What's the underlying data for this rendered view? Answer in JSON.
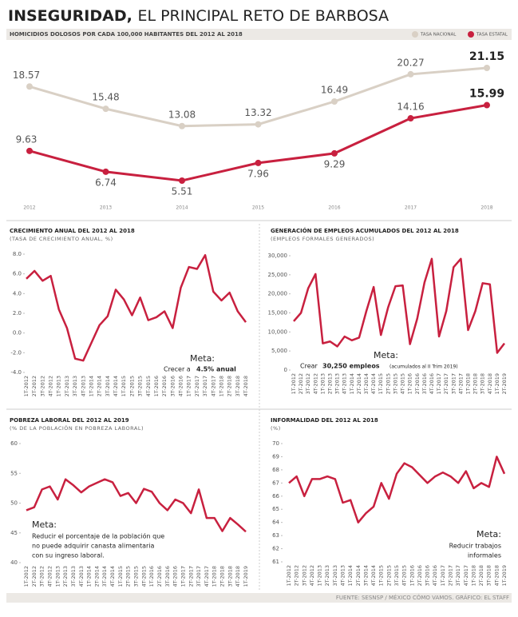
{
  "header": {
    "title_bold": "INSEGURIDAD,",
    "title_light": "EL PRINCIPAL RETO DE BARBOSA"
  },
  "source": "FUENTE: SESNSP / MÉXICO CÓMO VAMOS. GRÁFICO: EL STAFF",
  "chart_data": [
    {
      "type": "line",
      "title": "HOMICIDIOS DOLOSOS POR CADA 100,000 HABITANTES DEL 2012 AL 2018",
      "categories": [
        "2012",
        "2013",
        "2014",
        "2015",
        "2016",
        "2017",
        "2018"
      ],
      "series": [
        {
          "name": "TASA NACIONAL",
          "color": "#d9d0c5",
          "values": [
            18.57,
            15.48,
            13.08,
            13.32,
            16.49,
            20.27,
            21.15
          ]
        },
        {
          "name": "TASA ESTATAL",
          "color": "#c8203f",
          "values": [
            9.63,
            6.74,
            5.51,
            7.96,
            9.29,
            14.16,
            15.99
          ]
        }
      ]
    },
    {
      "type": "line",
      "title": "CRECIMIENTO ANUAL DEL 2012 AL 2018",
      "subtitle": "(TASA DE CRECIMIENTO ANUAL, %)",
      "color": "#c8203f",
      "categories": [
        "1T-2012",
        "2T-2012",
        "3T-2012",
        "4T-2012",
        "1T-2013",
        "2T-2013",
        "3T-2013",
        "4T-2013",
        "1T-2014",
        "2T-2014",
        "3T-2014",
        "4T-2014",
        "1T-2015",
        "2T-2015",
        "3T-2015",
        "4T-2015",
        "1T-2016",
        "2T-2016",
        "3T-2016",
        "4T-2016",
        "1T-2017",
        "2T-2017",
        "3T-2017",
        "4T-2017",
        "1T-2018",
        "2T-2018",
        "3T-2018",
        "4T-2018"
      ],
      "values": [
        5.5,
        6.3,
        5.3,
        5.8,
        2.4,
        0.5,
        -2.6,
        -2.8,
        -1.0,
        0.8,
        1.7,
        4.4,
        3.4,
        1.8,
        3.6,
        1.3,
        1.6,
        2.2,
        0.5,
        4.6,
        6.7,
        6.5,
        7.9,
        4.2,
        3.3,
        4.1,
        2.2,
        1.1
      ],
      "ylim": [
        -4,
        8
      ],
      "yticks": [
        {
          "value": 8,
          "label": "8.0"
        },
        {
          "value": 6,
          "label": "6.0"
        },
        {
          "value": 4,
          "label": "4.0"
        },
        {
          "value": 2,
          "label": "2.0"
        },
        {
          "value": 0,
          "label": "0.0"
        },
        {
          "value": -2,
          "label": "-2.0"
        },
        {
          "value": -4,
          "label": "-4.0"
        }
      ],
      "annotations": [
        "Meta:",
        "Crecer a",
        "4.5% anual"
      ]
    },
    {
      "type": "line",
      "title": "GENERACIÓN DE EMPLEOS ACUMULADOS DEL 2012 AL 2018",
      "subtitle": "(EMPLEOS FORMALES GENERADOS)",
      "color": "#c8203f",
      "categories": [
        "1T-2012",
        "2T-2012",
        "3T-2012",
        "4T-2012",
        "1T-2013",
        "2T-2013",
        "3T-2013",
        "4T-2013",
        "1T-2014",
        "2T-2014",
        "3T-2014",
        "4T-2014",
        "1T-2015",
        "2T-2015",
        "3T-2015",
        "4T-2015",
        "1T-2016",
        "2T-2016",
        "3T-2016",
        "4T-2016",
        "1T-2017",
        "2T-2017",
        "3T-2017",
        "4T-2017",
        "1T-2018",
        "2T-2018",
        "3T-2018",
        "4T-2018",
        "1T-2019",
        "2T-2019"
      ],
      "values": [
        12800,
        15000,
        21500,
        25200,
        7000,
        7500,
        6200,
        8800,
        7800,
        8500,
        15500,
        21800,
        9200,
        16500,
        22000,
        22200,
        6800,
        13500,
        23000,
        29200,
        8800,
        15500,
        27000,
        29200,
        10500,
        15500,
        22800,
        22500,
        4500,
        7000
      ],
      "ylim": [
        0,
        30000
      ],
      "yticks": [
        0,
        {
          "value": 5000,
          "label": "5,000"
        },
        {
          "value": 10000,
          "label": "10,000"
        },
        {
          "value": 15000,
          "label": "15,000"
        },
        {
          "value": 20000,
          "label": "20,000"
        },
        {
          "value": 25000,
          "label": "25,000"
        },
        {
          "value": 30000,
          "label": "30,000"
        }
      ],
      "annotations": [
        "Meta:",
        "Crear",
        "30,250 empleos",
        "(acumulados al II Trim 2019)"
      ]
    },
    {
      "type": "line",
      "title": "POBREZA LABORAL DEL 2012 AL 2019",
      "subtitle": "(% DE LA POBLACIÓN EN POBREZA LABORAL)",
      "color": "#c8203f",
      "categories": [
        "1T-2012",
        "2T-2012",
        "3T-2012",
        "4T-2012",
        "1T-2013",
        "2T-2013",
        "3T-2013",
        "4T-2013",
        "1T-2014",
        "2T-2014",
        "3T-2014",
        "4T-2014",
        "1T-2015",
        "2T-2015",
        "3T-2015",
        "4T-2015",
        "1T-2016",
        "2T-2016",
        "3T-2016",
        "4T-2016",
        "1T-2017",
        "2T-2017",
        "3T-2017",
        "4T-2017",
        "1T-2018",
        "2T-2018",
        "3T-2018",
        "4T-2018",
        "1T-2019"
      ],
      "values": [
        48.8,
        49.3,
        52.3,
        52.8,
        50.6,
        54.0,
        53.0,
        51.8,
        52.8,
        53.4,
        54.0,
        53.5,
        51.2,
        51.7,
        50.0,
        52.4,
        51.9,
        50.0,
        48.8,
        50.6,
        50.0,
        48.3,
        52.3,
        47.5,
        47.5,
        45.3,
        47.5,
        46.4,
        45.2
      ],
      "ylim": [
        40,
        60
      ],
      "yticks": [
        40,
        45,
        50,
        55,
        60
      ],
      "annotations": [
        "Meta:",
        "Reducir el porcentaje de la población que",
        "no puede adquirir canasta alimentaria",
        "con su ingreso laboral."
      ]
    },
    {
      "type": "line",
      "title": "INFORMALIDAD DEL 2012 AL 2018",
      "subtitle": "(%)",
      "color": "#c8203f",
      "categories": [
        "1T-2012",
        "2T-2012",
        "3T-2012",
        "4T-2012",
        "1T-2013",
        "2T-2013",
        "3T-2013",
        "4T-2013",
        "1T-2014",
        "2T-2014",
        "3T-2014",
        "4T-2014",
        "1T-2015",
        "2T-2015",
        "3T-2015",
        "4T-2015",
        "1T-2016",
        "2T-2016",
        "3T-2016",
        "4T-2016",
        "1T-2017",
        "2T-2017",
        "3T-2017",
        "4T-2017",
        "1T-2018",
        "2T-2018",
        "3T-2018",
        "4T-2018",
        "1T-2019"
      ],
      "values": [
        67.0,
        67.5,
        66.0,
        67.3,
        67.3,
        67.5,
        67.3,
        65.5,
        65.7,
        64.0,
        64.7,
        65.2,
        67.0,
        65.8,
        67.7,
        68.5,
        68.2,
        67.6,
        67.0,
        67.5,
        67.8,
        67.5,
        67.0,
        67.9,
        66.6,
        67.0,
        66.7,
        69.0,
        67.7
      ],
      "ylim": [
        61,
        70
      ],
      "yticks": [
        61,
        62,
        63,
        64,
        65,
        66,
        67,
        68,
        69,
        70
      ],
      "annotations": [
        "Meta:",
        "Reducir trabajos",
        "informales"
      ]
    }
  ]
}
